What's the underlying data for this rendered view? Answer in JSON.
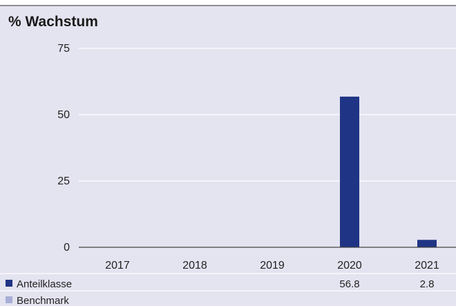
{
  "chart_data": {
    "type": "bar",
    "title": "% Wachstum",
    "categories": [
      "2017",
      "2018",
      "2019",
      "2020",
      "2021"
    ],
    "series": [
      {
        "name": "Anteilklasse",
        "values": [
          null,
          null,
          null,
          56.8,
          2.8
        ],
        "labels": [
          "",
          "",
          "",
          "56.8",
          "2.8"
        ],
        "color": "#1f3484"
      },
      {
        "name": "Benchmark",
        "values": [
          null,
          null,
          null,
          null,
          null
        ],
        "labels": [
          "",
          "",
          "",
          "",
          ""
        ],
        "color": "#a9aed6"
      }
    ],
    "yticks": [
      0,
      25,
      50,
      75
    ],
    "ylim": [
      0,
      75
    ],
    "grid": true,
    "legend": "bottom-table"
  },
  "colors": {
    "background": "#e4e3f0",
    "gridline": "#ffffff",
    "axis": "#444444",
    "top_rule": "#555555"
  }
}
